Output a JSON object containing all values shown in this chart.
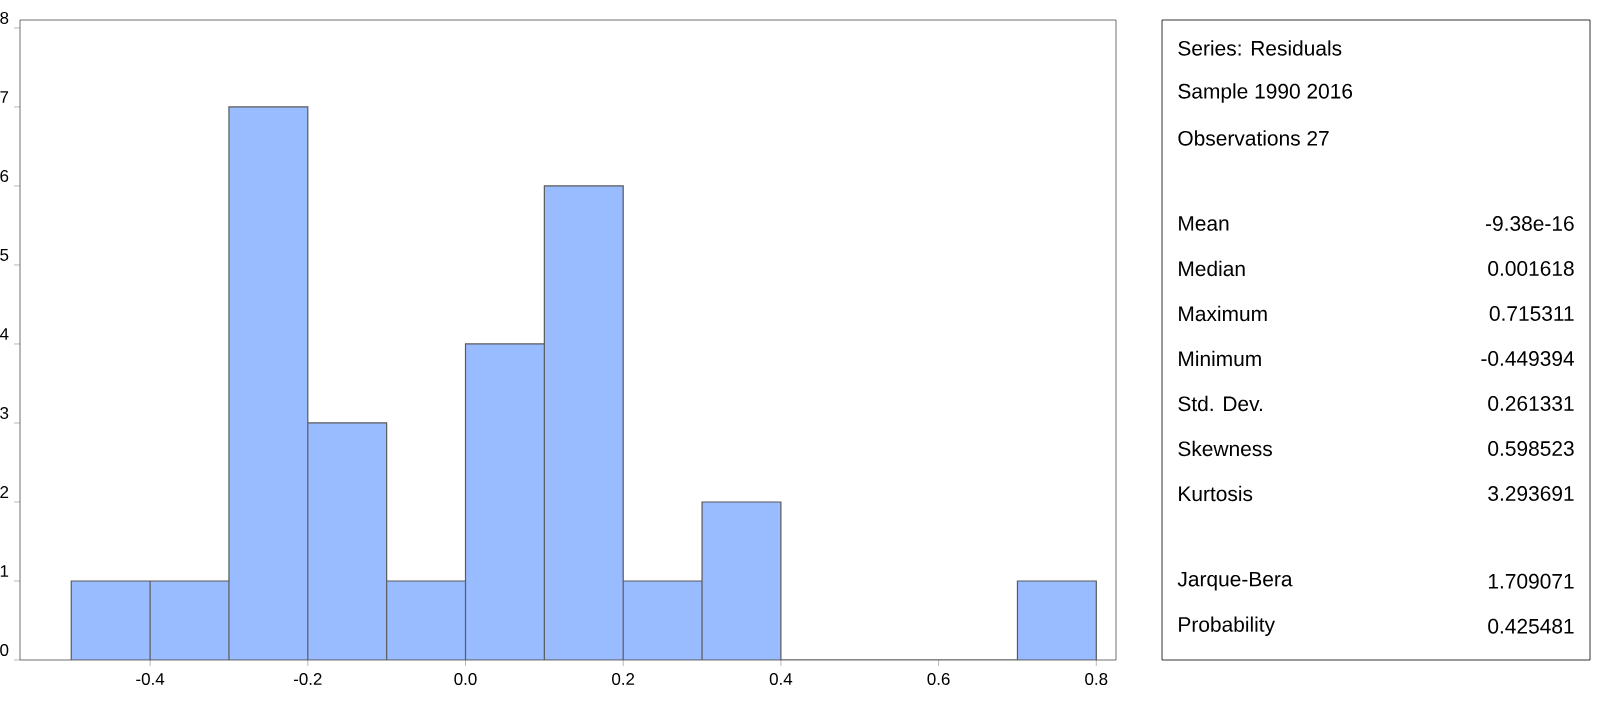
{
  "chart_data": [
    {
      "type": "histogram",
      "bins": [
        -0.5,
        -0.4,
        -0.3,
        -0.2,
        -0.1,
        0.0,
        0.1,
        0.2,
        0.3,
        0.4,
        0.5,
        0.6,
        0.7,
        0.8
      ],
      "values": [
        1,
        1,
        7,
        3,
        1,
        4,
        6,
        1,
        2,
        0,
        0,
        0,
        1
      ],
      "color": "#99bbff",
      "xlim": [
        -0.565,
        0.825
      ],
      "ylim": [
        0,
        8.1
      ],
      "xticks": [
        -0.4,
        -0.2,
        {
          "value": 0.0,
          "label": "0.0"
        },
        0.2,
        0.4,
        0.6,
        0.8
      ],
      "yticks": [
        0,
        1,
        2,
        3,
        4,
        5,
        6,
        7,
        8
      ],
      "grid": false
    },
    {
      "type": "other",
      "annotations": [
        "Series: Residuals",
        "Sample 1990 2016",
        "Observations 27"
      ],
      "categories": [
        "Mean",
        "Median",
        "Maximum",
        "Minimum",
        "Std. Dev.",
        "Skewness",
        "Kurtosis",
        "Jarque-Bera",
        "Probability"
      ],
      "values": [
        -9.38e-16,
        0.001618,
        0.715311,
        -0.449394,
        0.261331,
        0.598523,
        3.293691,
        1.709071,
        0.425481
      ],
      "value_labels": [
        "-9.38e-16",
        "0.001618",
        "0.715311",
        "-0.449394",
        "0.261331",
        "0.598523",
        "3.293691",
        "1.709071",
        "0.425481"
      ]
    }
  ]
}
